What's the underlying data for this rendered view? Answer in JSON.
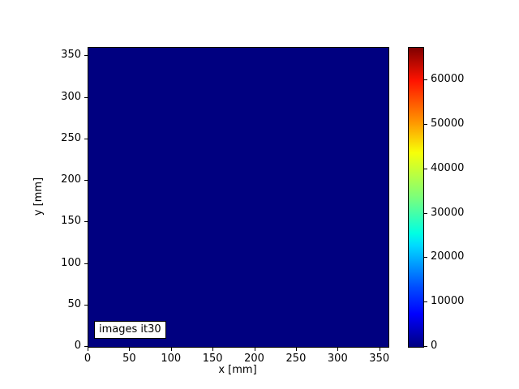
{
  "figure": {
    "background": "#ffffff"
  },
  "axes": {
    "xlabel": "x [mm]",
    "ylabel": "y [mm]",
    "xlim": [
      0,
      360
    ],
    "ylim": [
      0,
      360
    ],
    "xticks": [
      0,
      50,
      100,
      150,
      200,
      250,
      300,
      350
    ],
    "yticks": [
      0,
      50,
      100,
      150,
      200,
      250,
      300,
      350
    ]
  },
  "annotation": {
    "text": "images it30"
  },
  "colorbar": {
    "vmin": 0,
    "vmax": 67300,
    "ticks": [
      0,
      10000,
      20000,
      30000,
      40000,
      50000,
      60000
    ],
    "colormap": "jet",
    "min_color": "#000080",
    "max_color": "#800000"
  },
  "chart_data": {
    "type": "heatmap",
    "title": "",
    "xlabel": "x [mm]",
    "ylabel": "y [mm]",
    "x_range": [
      0,
      360
    ],
    "y_range": [
      0,
      360
    ],
    "xticks": [
      0,
      50,
      100,
      150,
      200,
      250,
      300,
      350
    ],
    "yticks": [
      0,
      50,
      100,
      150,
      200,
      250,
      300,
      350
    ],
    "uniform_value": 0,
    "value_note": "entire field is at the colormap minimum (solid dark blue)",
    "colormap": "jet",
    "colorbar_range": [
      0,
      67300
    ],
    "colorbar_ticks": [
      0,
      10000,
      20000,
      30000,
      40000,
      50000,
      60000
    ],
    "annotation": "images it30",
    "legend": "none",
    "grid": false
  }
}
